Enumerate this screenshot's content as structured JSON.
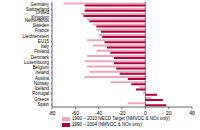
{
  "chart_data": {
    "type": "bar",
    "orientation": "horizontal",
    "xlabel": "%",
    "categories": [
      "Germany",
      "Switzerland",
      "United Kingdom",
      "Netherlands",
      "Sweden",
      "France",
      "Liechtenstein",
      "EU15",
      "Italy",
      "Finland",
      "Denmark",
      "Luxembourg",
      "Belgium",
      "Ireland",
      "Austria",
      "Norway",
      "Iceland",
      "Portugal",
      "Greece",
      "Spain"
    ],
    "series": [
      {
        "name": "1990 – 2010 NECD Target (NMVOC & NOx only)",
        "color": "#eca6bd",
        "values": [
          -70,
          -52,
          -55,
          -50,
          -45,
          -42,
          -40,
          -50,
          -45,
          -42,
          -50,
          -52,
          -50,
          -48,
          -52,
          -30,
          -5,
          -2,
          5,
          -15
        ]
      },
      {
        "name": "1990 – 2004 (NMVOC & NOx only)",
        "color": "#b0003a",
        "values": [
          -52,
          -52,
          -53,
          -48,
          -42,
          -38,
          -37,
          -35,
          -33,
          -30,
          -27,
          -27,
          -25,
          -22,
          -15,
          -12,
          -8,
          10,
          15,
          18
        ]
      }
    ],
    "xlim": [
      -80,
      40
    ],
    "xticks": [
      -80,
      -60,
      -40,
      -20,
      0,
      20,
      40
    ],
    "grid": false,
    "legend": "bottom"
  }
}
